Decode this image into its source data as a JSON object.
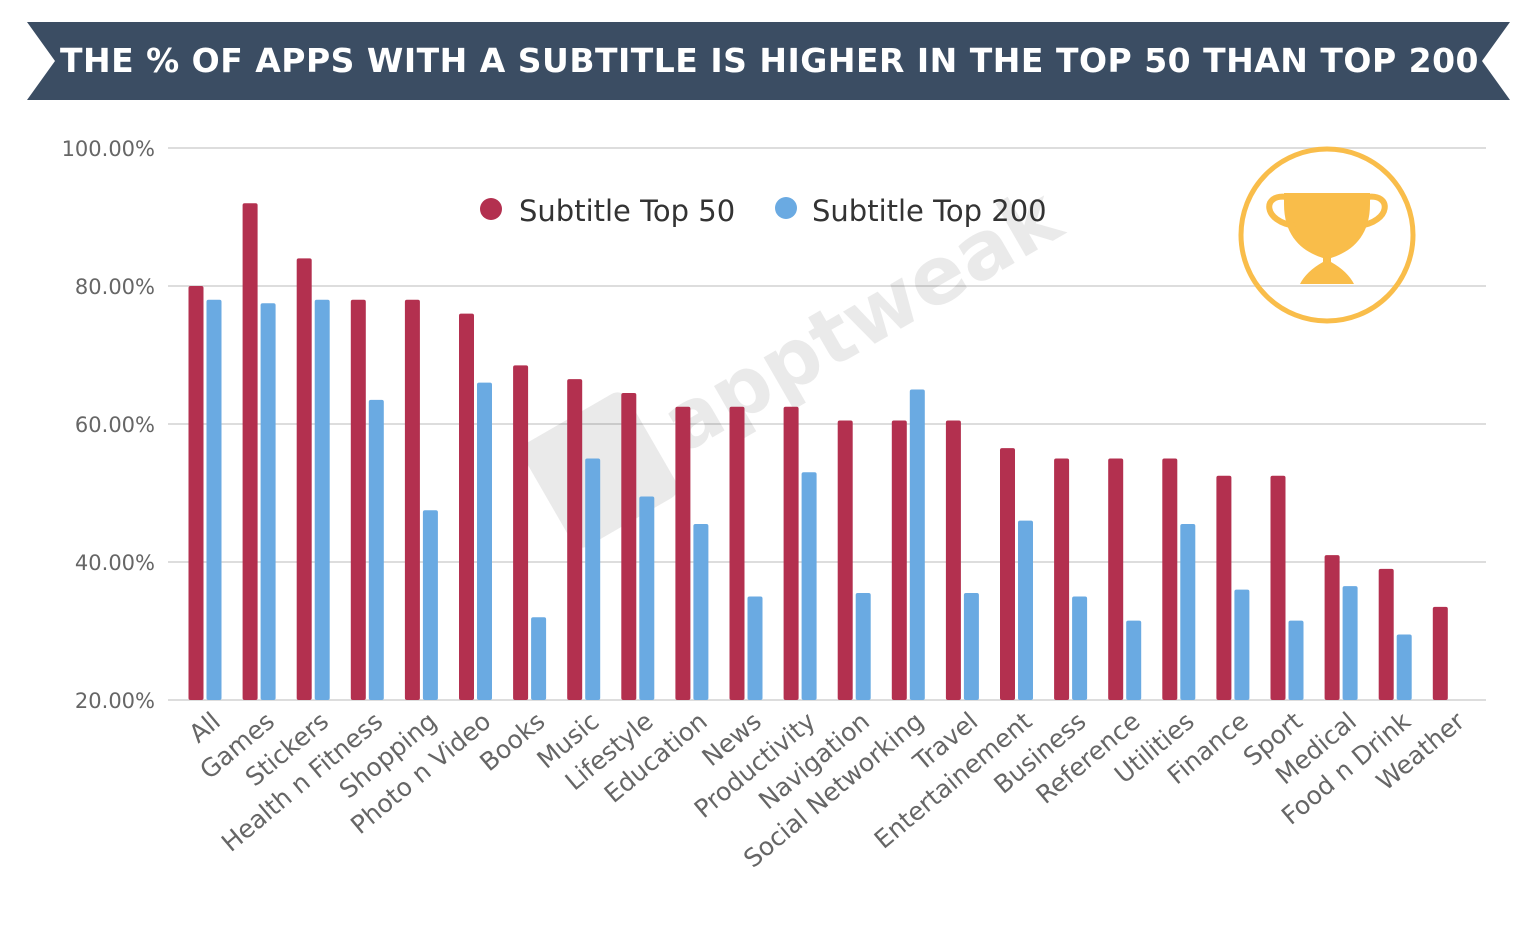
{
  "header": {
    "title": "THE % OF APPS WITH A SUBTITLE IS HIGHER IN THE TOP 50 THAN TOP 200"
  },
  "watermark": {
    "text": "apptweak"
  },
  "badge": {
    "icon": "trophy-icon",
    "color": "#f9bd4a"
  },
  "colors": {
    "banner": "#3b4d63",
    "series1": "#b3304f",
    "series2": "#6aaae2",
    "grid": "#dddddd"
  },
  "chart_data": {
    "type": "bar",
    "title": "THE % OF APPS WITH A SUBTITLE IS HIGHER IN THE TOP 50 THAN TOP 200",
    "xlabel": "",
    "ylabel": "",
    "ylim": [
      20,
      100
    ],
    "y_ticks": [
      20,
      40,
      60,
      80,
      100
    ],
    "y_tick_labels": [
      "20.00%",
      "40.00%",
      "60.00%",
      "80.00%",
      "100.00%"
    ],
    "grid": true,
    "legend_position": "top-center",
    "categories": [
      "All",
      "Games",
      "Stickers",
      "Health n Fitness",
      "Shopping",
      "Photo n Video",
      "Books",
      "Music",
      "Lifestyle",
      "Education",
      "News",
      "Productivity",
      "Navigation",
      "Social Networking",
      "Travel",
      "Entertainement",
      "Business",
      "Reference",
      "Utilities",
      "Finance",
      "Sport",
      "Medical",
      "Food n Drink",
      "Weather"
    ],
    "series": [
      {
        "name": "Subtitle Top 50",
        "color": "#b3304f",
        "values": [
          80,
          92,
          84,
          78,
          78,
          76,
          68.5,
          66.5,
          64.5,
          62.5,
          62.5,
          62.5,
          60.5,
          60.5,
          60.5,
          56.5,
          55,
          55,
          55,
          52.5,
          52.5,
          41,
          39,
          33.5
        ]
      },
      {
        "name": "Subtitle Top 200",
        "color": "#6aaae2",
        "values": [
          78,
          77.5,
          78,
          63.5,
          47.5,
          66,
          32,
          55,
          49.5,
          45.5,
          35,
          53,
          35.5,
          65,
          35.5,
          46,
          35,
          31.5,
          45.5,
          36,
          31.5,
          36.5,
          29.5,
          null
        ]
      }
    ]
  }
}
